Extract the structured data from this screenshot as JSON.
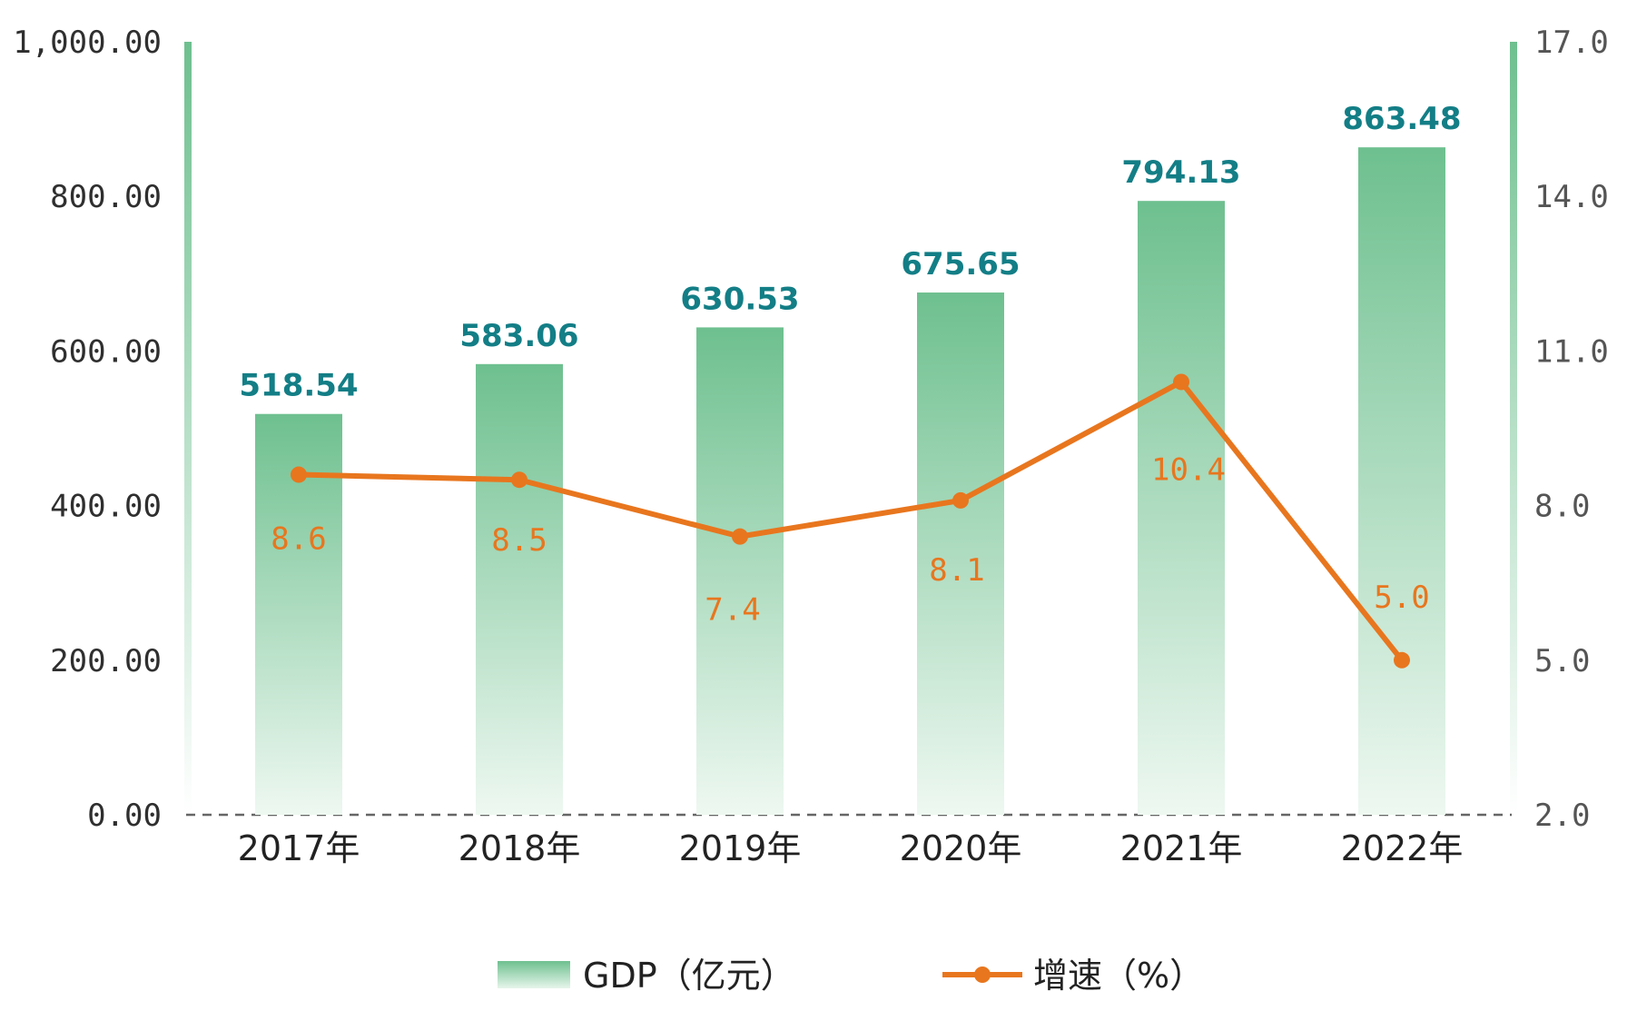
{
  "chart_data": {
    "type": "bar",
    "categories": [
      "2017年",
      "2018年",
      "2019年",
      "2020年",
      "2021年",
      "2022年"
    ],
    "series": [
      {
        "name": "GDP（亿元）",
        "type": "bar",
        "axis": "left",
        "values": [
          518.54,
          583.06,
          630.53,
          675.65,
          794.13,
          863.48
        ],
        "labels": [
          "518.54",
          "583.06",
          "630.53",
          "675.65",
          "794.13",
          "863.48"
        ],
        "color": "#6ec08f"
      },
      {
        "name": "增速（%）",
        "type": "line",
        "axis": "right",
        "values": [
          8.6,
          8.5,
          7.4,
          8.1,
          10.4,
          5.0
        ],
        "labels": [
          "8.6",
          "8.5",
          "7.4",
          "8.1",
          "10.4",
          "5.0"
        ],
        "color": "#e8761e"
      }
    ],
    "y_left": {
      "ylim": [
        0,
        1000
      ],
      "ticks": [
        0,
        200,
        400,
        600,
        800,
        1000
      ],
      "tick_labels": [
        "0.00",
        "200.00",
        "400.00",
        "600.00",
        "800.00",
        "1,000.00"
      ]
    },
    "y_right": {
      "ylim": [
        2,
        17
      ],
      "ticks": [
        2,
        5,
        8,
        11,
        14,
        17
      ],
      "tick_labels": [
        "2.0",
        "5.0",
        "8.0",
        "11.0",
        "14.0",
        "17.0"
      ]
    },
    "grid": false,
    "baseline": "dashed",
    "legend": "bottom-center"
  }
}
